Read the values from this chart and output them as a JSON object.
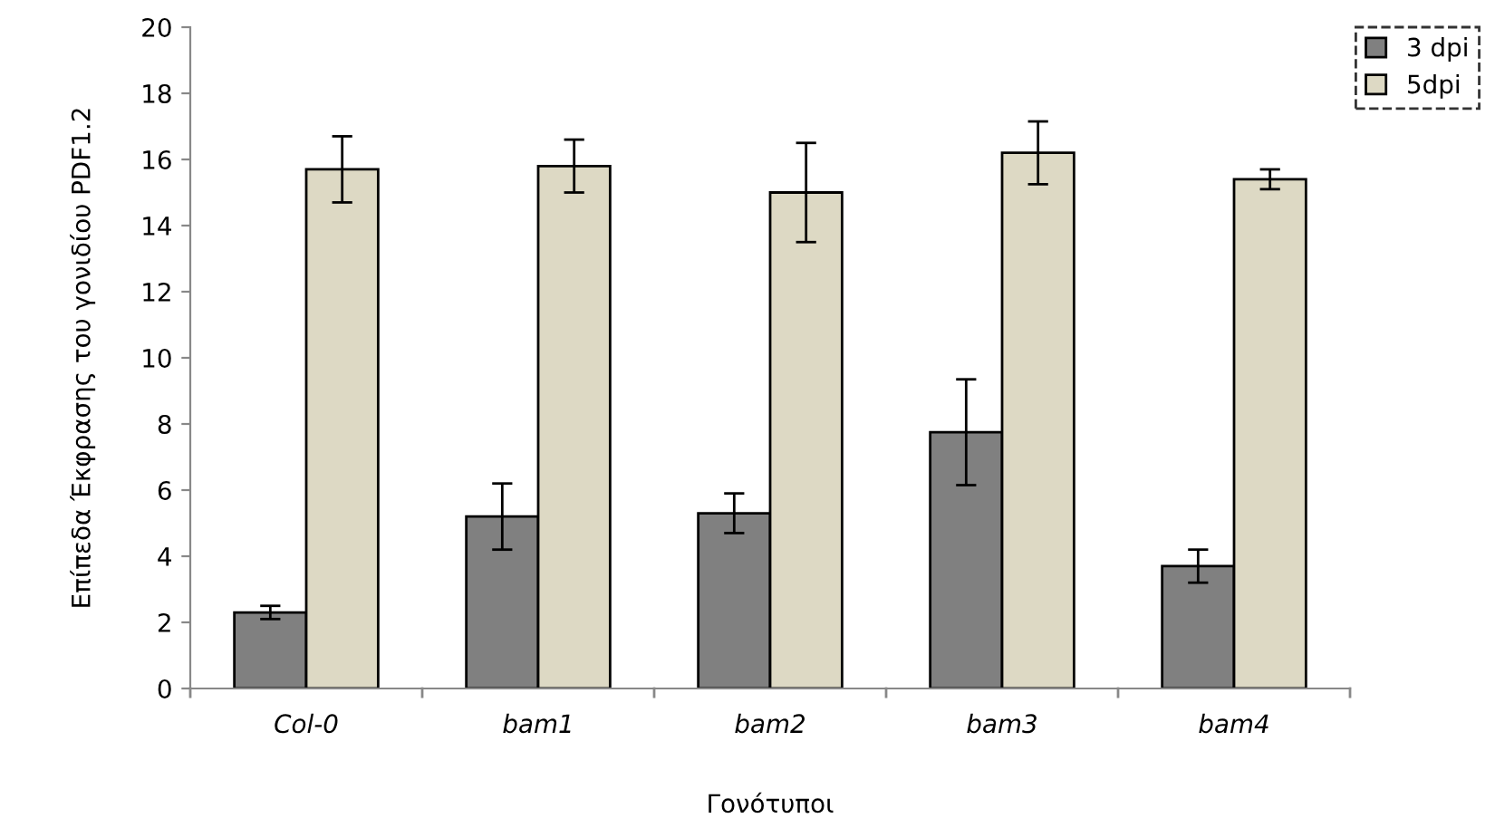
{
  "chart_data": {
    "type": "bar",
    "xlabel": "Γονότυποι",
    "ylabel": "Επίπεδα Έκφρασης του γονιδίου PDF1.2",
    "categories": [
      "Col-0",
      "bam1",
      "bam2",
      "bam3",
      "bam4"
    ],
    "series": [
      {
        "name": "3 dpi",
        "color": "#808080",
        "values": [
          2.3,
          5.2,
          5.3,
          7.75,
          3.7
        ],
        "errors": [
          0.2,
          1.0,
          0.6,
          1.6,
          0.5
        ]
      },
      {
        "name": "5dpi",
        "color": "#ddd9c4",
        "values": [
          15.7,
          15.8,
          15.0,
          16.2,
          15.4
        ],
        "errors": [
          1.0,
          0.8,
          1.5,
          0.95,
          0.3
        ]
      }
    ],
    "ylim": [
      0,
      20
    ],
    "yticks": [
      0,
      2,
      4,
      6,
      8,
      10,
      12,
      14,
      16,
      18,
      20
    ],
    "grid": false,
    "legend": "top right"
  }
}
